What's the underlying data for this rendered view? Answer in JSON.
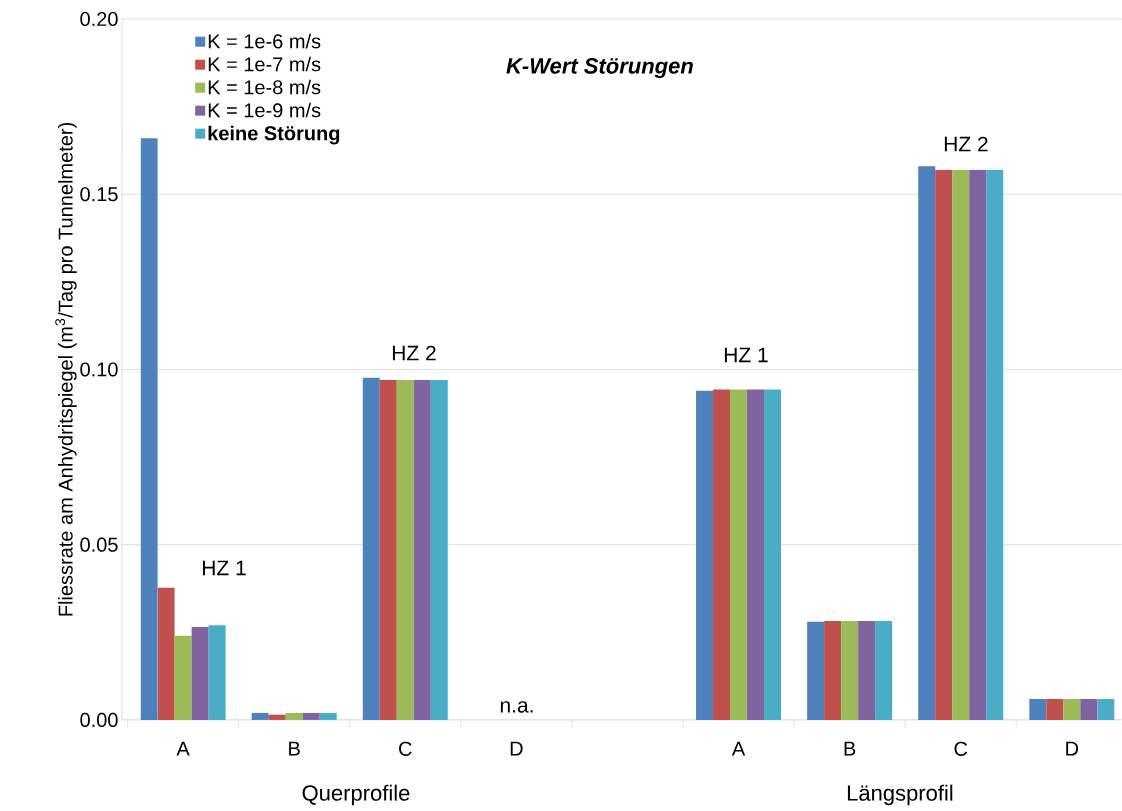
{
  "chart_data": {
    "type": "bar",
    "title": "K-Wert Störungen",
    "ylabel": "Fliessrate am Anhydritspiegel (m$^{3}$/Tag pro Tunnelmeter)",
    "categories": [
      "A",
      "B",
      "C",
      "D",
      null,
      "A",
      "B",
      "C",
      "D"
    ],
    "series": [
      {
        "name": "K = 1e-6 m/s",
        "color": "#4f81bd",
        "values": [
          0.166,
          0.002,
          0.0976,
          null,
          null,
          0.0939,
          0.028,
          0.158,
          0.006
        ]
      },
      {
        "name": "K = 1e-7 m/s",
        "color": "#c0504d",
        "values": [
          0.0377,
          0.0015,
          0.097,
          null,
          null,
          0.0943,
          0.0282,
          0.157,
          0.006
        ]
      },
      {
        "name": "K = 1e-8 m/s",
        "color": "#9bbb59",
        "values": [
          0.024,
          0.002,
          0.097,
          null,
          null,
          0.0943,
          0.0282,
          0.157,
          0.006
        ]
      },
      {
        "name": "K = 1e-9 m/s",
        "color": "#8064a2",
        "values": [
          0.0265,
          0.002,
          0.097,
          null,
          null,
          0.0943,
          0.0282,
          0.157,
          0.006
        ]
      },
      {
        "name": "keine Störung",
        "color": "#4bacc6",
        "values": [
          0.027,
          0.002,
          0.097,
          null,
          null,
          0.0943,
          0.0282,
          0.157,
          0.006
        ]
      }
    ],
    "ylim": [
      0,
      0.2
    ],
    "yticks": [
      {
        "value": 0,
        "label": "0.00"
      },
      {
        "value": 0.05,
        "label": "0.05"
      },
      {
        "value": 0.1,
        "label": "0.10"
      },
      {
        "value": 0.15,
        "label": "0.15"
      },
      {
        "value": 0.2,
        "label": "0.20"
      }
    ],
    "grid": "y",
    "legend": "top left",
    "annotations": [
      "HZ 1",
      "HZ 2",
      "n.a.",
      "HZ 1",
      "HZ 2",
      "Querprofile",
      "Längsprofil"
    ]
  }
}
